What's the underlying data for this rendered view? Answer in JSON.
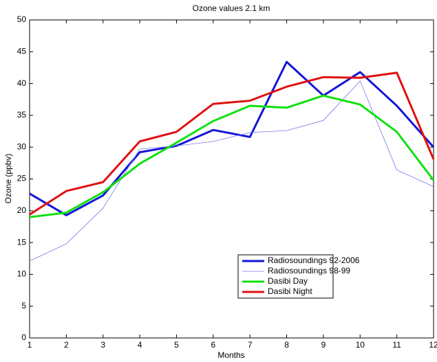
{
  "chart_data": {
    "type": "line",
    "title": "Ozone values 2.1 km",
    "x_label": "Months",
    "y_label": "Ozone (ppbv)",
    "x": [
      1,
      2,
      3,
      4,
      5,
      6,
      7,
      8,
      9,
      10,
      11,
      12
    ],
    "series": [
      {
        "name": "Radiosoundings 92-2006",
        "color": "#1414d8",
        "values": [
          22.7,
          19.3,
          22.4,
          29.2,
          30.2,
          32.7,
          31.6,
          43.4,
          38.1,
          41.8,
          36.5,
          30.0
        ]
      },
      {
        "name": "Radiosoundings 98-99",
        "color": "#7878f0",
        "values": [
          12.1,
          14.8,
          20.4,
          29.7,
          30.2,
          30.9,
          32.3,
          32.6,
          34.2,
          40.4,
          26.4,
          23.8
        ]
      },
      {
        "name": "Dasibi Day",
        "color": "#10e010",
        "values": [
          19.0,
          19.7,
          22.9,
          27.4,
          30.7,
          34.1,
          36.5,
          36.2,
          38.1,
          36.7,
          32.4,
          24.8
        ]
      },
      {
        "name": "Dasibi Night",
        "color": "#e01010",
        "values": [
          19.4,
          23.1,
          24.5,
          30.9,
          32.4,
          36.8,
          37.3,
          39.5,
          41.0,
          40.9,
          41.7,
          28.1
        ]
      }
    ],
    "xlim": [
      1,
      12
    ],
    "xticks": [
      1,
      2,
      3,
      4,
      5,
      6,
      7,
      8,
      9,
      10,
      11,
      12
    ],
    "ylim": [
      0,
      50
    ],
    "yticks": [
      0,
      5,
      10,
      15,
      20,
      25,
      30,
      35,
      40,
      45,
      50
    ],
    "legend": "lower right"
  }
}
